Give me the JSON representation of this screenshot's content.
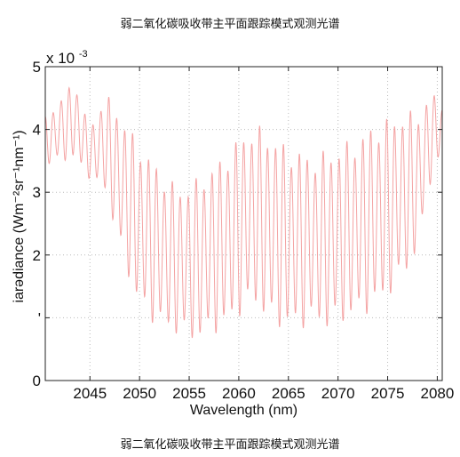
{
  "header": {
    "title": "弱二氧化碳吸收带主平面跟踪模式观测光谱"
  },
  "footer": {
    "caption": "弱二氧化碳吸收带主平面跟踪模式观测光谱"
  },
  "chart_data": {
    "type": "line",
    "title": "弱二氧化碳吸收带主平面跟踪模式观测光谱",
    "xlabel": "Wavelength (nm)",
    "ylabel_prefix": "iaادiance (Wm",
    "ylabel_display": "iarədiance (Wm⁻²sr⁻¹nm⁻¹)",
    "y_multiplier": "x 10",
    "y_multiplier_exp": "-3",
    "xlim": [
      2040.5,
      2080.5
    ],
    "ylim": [
      0,
      5
    ],
    "x_ticks": [
      2045,
      2050,
      2055,
      2060,
      2065,
      2070,
      2075,
      2080
    ],
    "y_ticks": [
      {
        "value": 0,
        "label": "0"
      },
      {
        "value": 1,
        "label": "'"
      },
      {
        "value": 2,
        "label": "2"
      },
      {
        "value": 3,
        "label": "3"
      },
      {
        "value": 4,
        "label": "4"
      },
      {
        "value": 5,
        "label": "5"
      }
    ],
    "grid": true,
    "series": [
      {
        "color": "#f4a3a3",
        "upper_envelope": [
          [
            2040.5,
            4.2
          ],
          [
            2042,
            4.5
          ],
          [
            2043.5,
            4.8
          ],
          [
            2045,
            4.0
          ],
          [
            2046.5,
            4.6
          ],
          [
            2048,
            4.3
          ],
          [
            2049.5,
            3.9
          ],
          [
            2051,
            3.6
          ],
          [
            2052.5,
            3.3
          ],
          [
            2054,
            3.1
          ],
          [
            2055.5,
            3.2
          ],
          [
            2057,
            3.4
          ],
          [
            2058.5,
            3.6
          ],
          [
            2060,
            3.9
          ],
          [
            2061.5,
            4.1
          ],
          [
            2063,
            4.0
          ],
          [
            2064.5,
            3.8
          ],
          [
            2066,
            3.7
          ],
          [
            2067.5,
            3.6
          ],
          [
            2069,
            3.7
          ],
          [
            2070.5,
            3.8
          ],
          [
            2072,
            3.9
          ],
          [
            2073.5,
            4.1
          ],
          [
            2075,
            4.2
          ],
          [
            2076.5,
            4.3
          ],
          [
            2078,
            4.3
          ],
          [
            2079.5,
            4.6
          ],
          [
            2080.5,
            4.4
          ]
        ],
        "lower_envelope": [
          [
            2040.5,
            3.4
          ],
          [
            2042,
            3.5
          ],
          [
            2043.5,
            3.5
          ],
          [
            2045,
            3.2
          ],
          [
            2046.5,
            3.0
          ],
          [
            2048,
            2.1
          ],
          [
            2049.5,
            1.3
          ],
          [
            2051,
            0.95
          ],
          [
            2052.5,
            0.8
          ],
          [
            2054,
            0.7
          ],
          [
            2055.5,
            0.6
          ],
          [
            2057,
            0.7
          ],
          [
            2058.5,
            0.8
          ],
          [
            2060,
            1.0
          ],
          [
            2061.5,
            1.2
          ],
          [
            2063,
            0.9
          ],
          [
            2064.5,
            0.8
          ],
          [
            2066,
            0.8
          ],
          [
            2067.5,
            0.9
          ],
          [
            2069,
            0.8
          ],
          [
            2070.5,
            0.9
          ],
          [
            2072,
            1.0
          ],
          [
            2073.5,
            1.1
          ],
          [
            2075,
            1.3
          ],
          [
            2076.5,
            1.6
          ],
          [
            2078,
            2.0
          ],
          [
            2079.5,
            3.3
          ],
          [
            2080.5,
            3.6
          ]
        ],
        "cycles_per_nm": 1.25
      }
    ]
  }
}
